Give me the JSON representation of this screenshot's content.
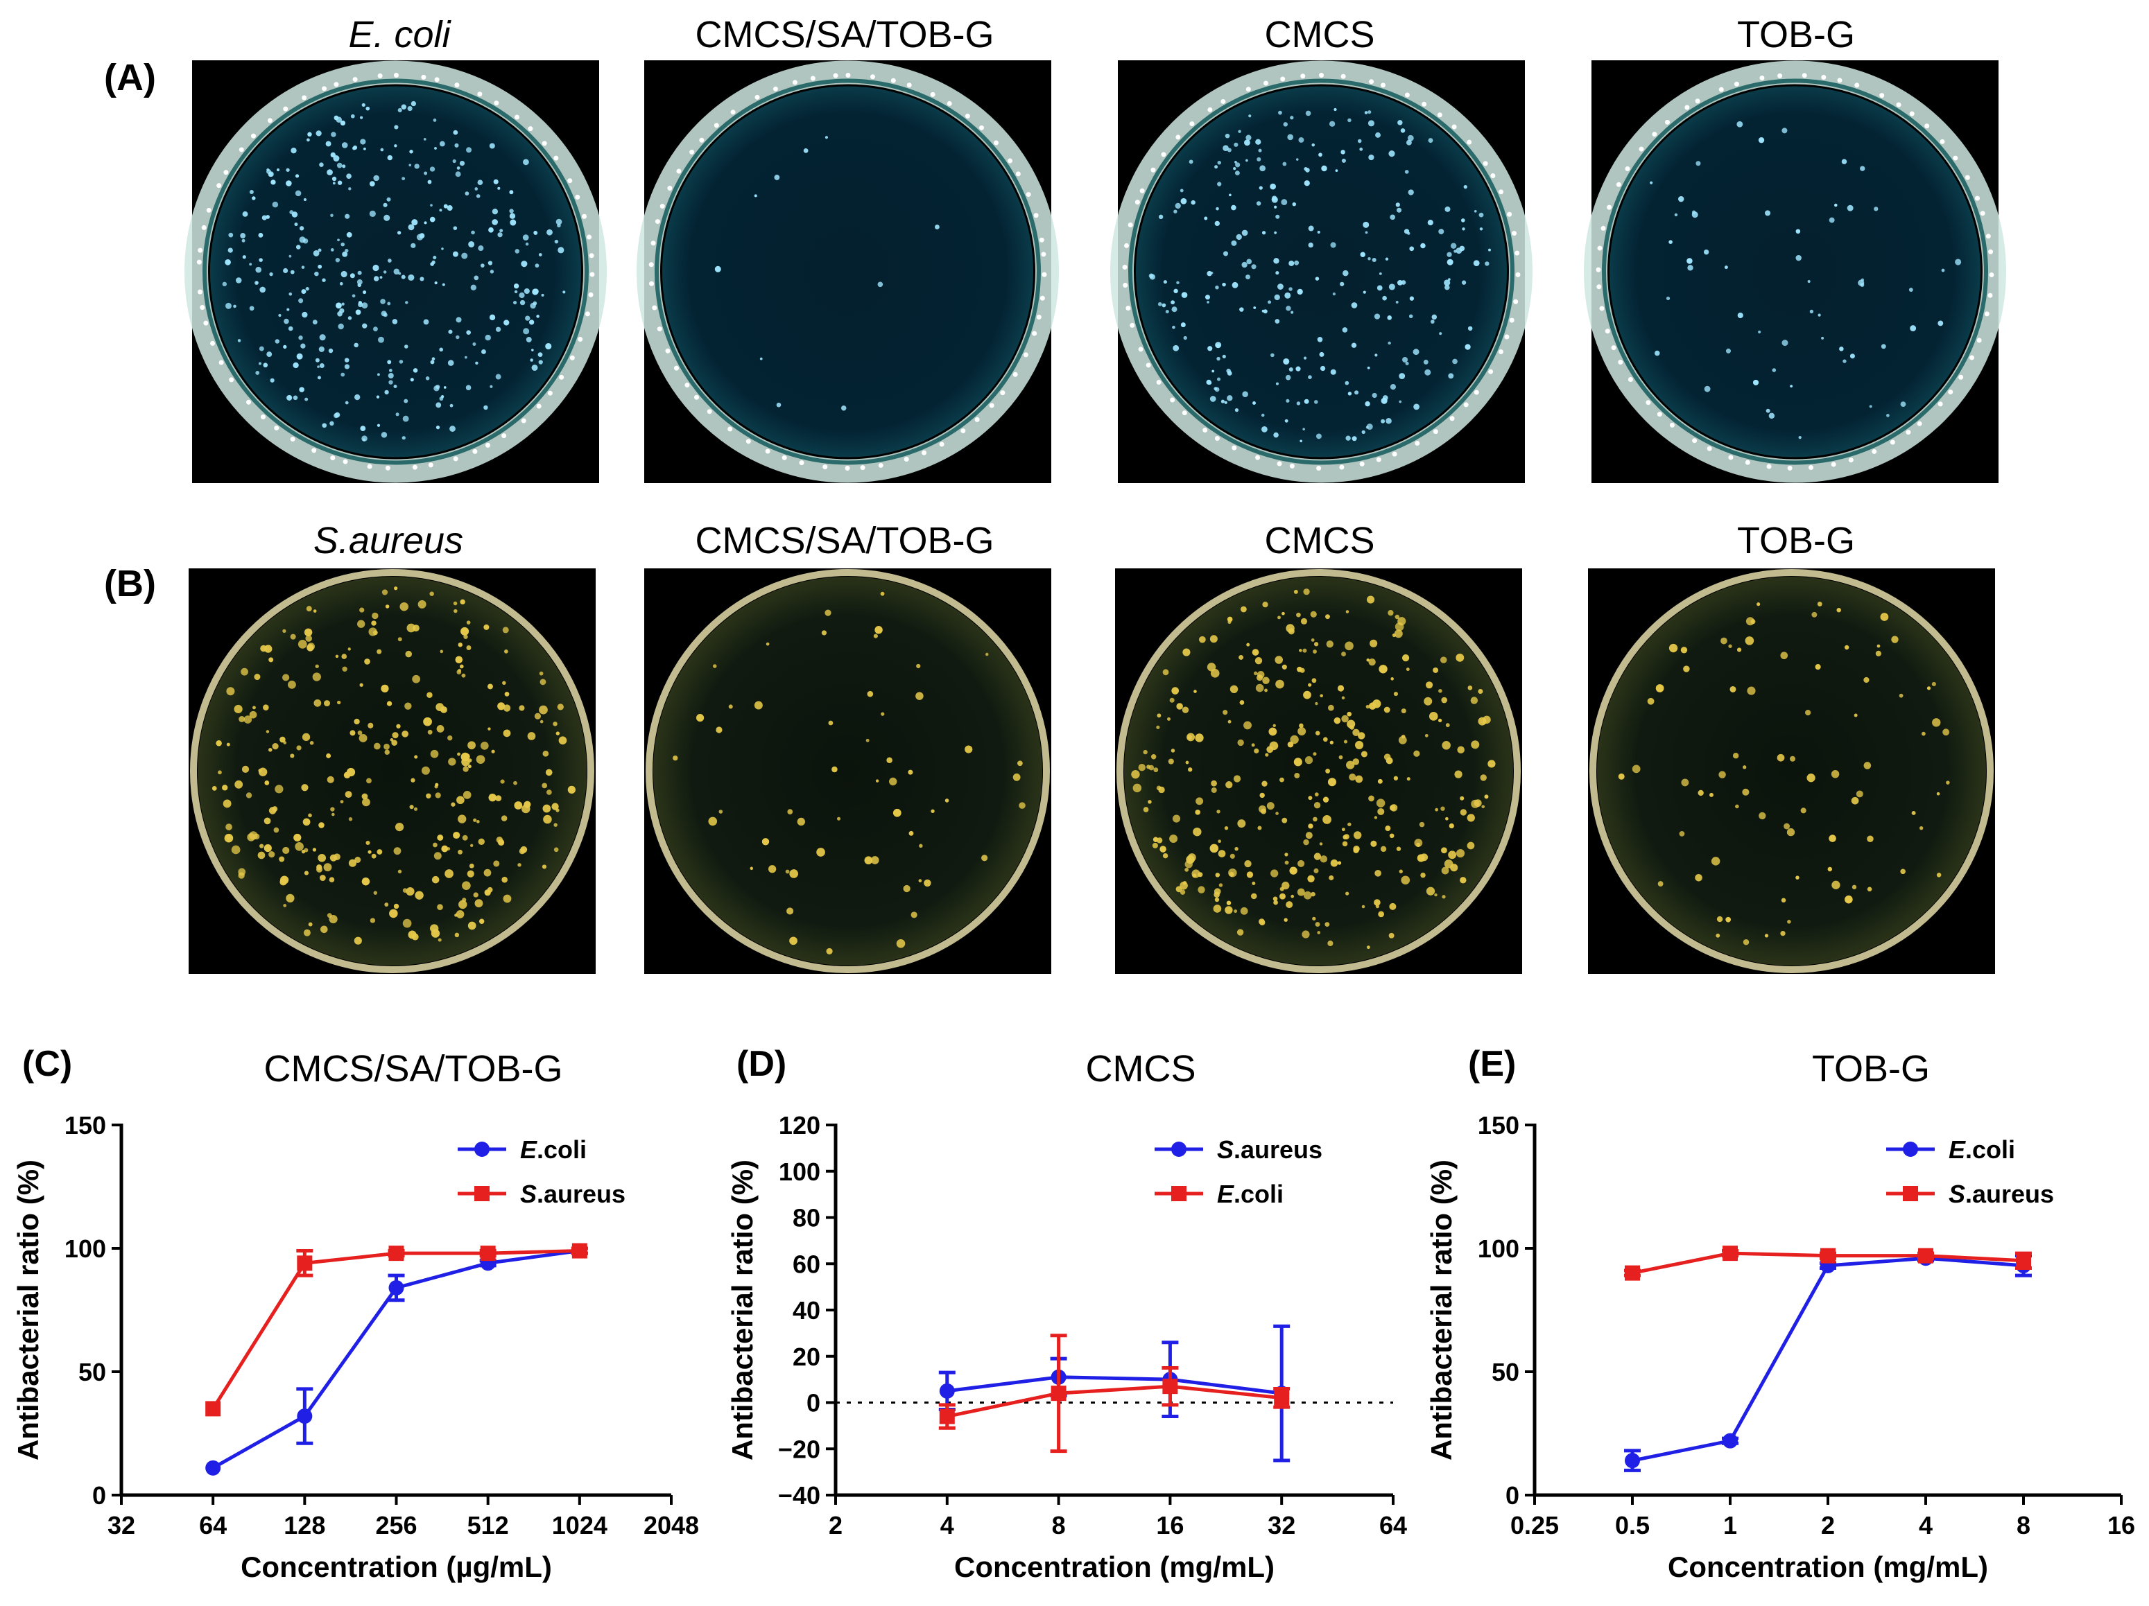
{
  "panels": {
    "A": {
      "label": "(A)",
      "dish_titles": [
        "E. coli",
        "CMCS/SA/TOB-G",
        "CMCS",
        "TOB-G"
      ],
      "colony_color": "#9fe6ff",
      "rim_color": "#cfe8e0",
      "background_color": "#031824"
    },
    "B": {
      "label": "(B)",
      "dish_titles": [
        "S.aureus",
        "CMCS/SA/TOB-G",
        "CMCS",
        "TOB-G"
      ],
      "colony_color": "#e6c94a",
      "rim_color": "#d8cfa0",
      "background_color": "#0b120a"
    }
  },
  "chart_data": [
    {
      "panel_label": "(C)",
      "type": "line",
      "title": "CMCS/SA/TOB-G",
      "xlabel": "Concentration (µg/mL)",
      "ylabel": "Antibacterial ratio (%)",
      "x_scale": "log2",
      "xlim": [
        32,
        2048
      ],
      "xticks": [
        "32",
        "64",
        "128",
        "256",
        "512",
        "1024",
        "2048"
      ],
      "ylim": [
        0,
        150
      ],
      "yticks": [
        "0",
        "50",
        "100",
        "150"
      ],
      "zero_line": false,
      "legend": "top-right",
      "series": [
        {
          "name": "E.coli",
          "name_italic": "E",
          "name_rest": ".coli",
          "color": "#1f1fe6",
          "marker": "circle",
          "x": [
            64,
            128,
            256,
            512,
            1024
          ],
          "y": [
            11,
            32,
            84,
            94,
            99
          ],
          "err": [
            0,
            11,
            5,
            1,
            1
          ]
        },
        {
          "name": "S.aureus",
          "name_italic": "S",
          "name_rest": ".aureus",
          "color": "#e61f1f",
          "marker": "square",
          "x": [
            64,
            128,
            256,
            512,
            1024
          ],
          "y": [
            35,
            94,
            98,
            98,
            99
          ],
          "err": [
            0,
            5,
            1,
            1,
            1
          ]
        }
      ]
    },
    {
      "panel_label": "(D)",
      "type": "line",
      "title": "CMCS",
      "xlabel": "Concentration (mg/mL)",
      "ylabel": "Antibacterial ratio (%)",
      "x_scale": "log2",
      "xlim": [
        2,
        64
      ],
      "xticks": [
        "2",
        "4",
        "8",
        "16",
        "32",
        "64"
      ],
      "ylim": [
        -40,
        120
      ],
      "yticks": [
        "−40",
        "−20",
        "0",
        "20",
        "40",
        "60",
        "80",
        "100",
        "120"
      ],
      "zero_line": true,
      "legend": "top-right",
      "series": [
        {
          "name": "S.aureus",
          "name_italic": "S",
          "name_rest": ".aureus",
          "color": "#1f1fe6",
          "marker": "circle",
          "x": [
            4,
            8,
            16,
            32
          ],
          "y": [
            5,
            11,
            10,
            4
          ],
          "err": [
            8,
            8,
            16,
            29
          ]
        },
        {
          "name": "E.coli",
          "name_italic": "E",
          "name_rest": ".coli",
          "color": "#e61f1f",
          "marker": "square",
          "x": [
            4,
            8,
            16,
            32
          ],
          "y": [
            -6,
            4,
            7,
            2
          ],
          "err": [
            5,
            25,
            8,
            4
          ]
        }
      ]
    },
    {
      "panel_label": "(E)",
      "type": "line",
      "title": "TOB-G",
      "xlabel": "Concentration (mg/mL)",
      "ylabel": "Antibacterial ratio (%)",
      "x_scale": "log2",
      "xlim": [
        0.25,
        16
      ],
      "xticks": [
        "0.25",
        "0.5",
        "1",
        "2",
        "4",
        "8",
        "16"
      ],
      "ylim": [
        0,
        150
      ],
      "yticks": [
        "0",
        "50",
        "100",
        "150"
      ],
      "zero_line": false,
      "legend": "top-right",
      "series": [
        {
          "name": "E.coli",
          "name_italic": "E",
          "name_rest": ".coli",
          "color": "#1f1fe6",
          "marker": "circle",
          "x": [
            0.5,
            1,
            2,
            4,
            8
          ],
          "y": [
            14,
            22,
            93,
            96,
            93
          ],
          "err": [
            4,
            1,
            1,
            1,
            4
          ]
        },
        {
          "name": "S.aureus",
          "name_italic": "S",
          "name_rest": ".aureus",
          "color": "#e61f1f",
          "marker": "square",
          "x": [
            0.5,
            1,
            2,
            4,
            8
          ],
          "y": [
            90,
            98,
            97,
            97,
            95
          ],
          "err": [
            1,
            1,
            1,
            1,
            3
          ]
        }
      ]
    }
  ]
}
